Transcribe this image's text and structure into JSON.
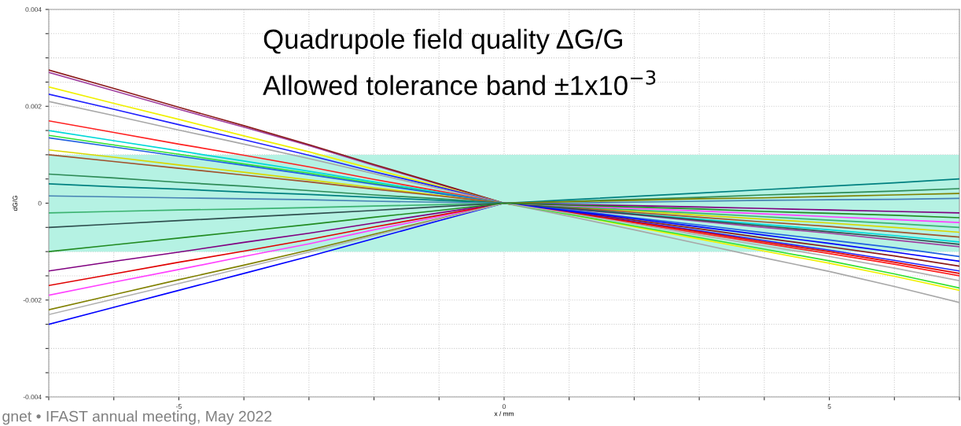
{
  "chart_data": {
    "type": "line",
    "title": "Quadrupole field quality ΔG/G",
    "subtitle": "Allowed tolerance band ±1x10$^{−3}$",
    "xlabel": "x / mm",
    "ylabel": "dG/G",
    "annotations": [
      "gnet • IFAST annual meeting, May 2022"
    ],
    "x": [
      -7,
      -6,
      -5,
      -4,
      -3,
      -2,
      -1,
      0,
      1,
      2,
      3,
      4,
      5,
      6,
      7
    ],
    "xlim": [
      -7,
      7
    ],
    "xticks": [
      {
        "value": -7,
        "label": null
      },
      {
        "value": -6,
        "label": null
      },
      -5,
      {
        "value": -4,
        "label": null
      },
      {
        "value": -3,
        "label": null
      },
      {
        "value": -2,
        "label": null
      },
      {
        "value": -1,
        "label": null
      },
      0,
      {
        "value": 1,
        "label": null
      },
      {
        "value": 2,
        "label": null
      },
      {
        "value": 3,
        "label": null
      },
      {
        "value": 4,
        "label": null
      },
      5,
      {
        "value": 6,
        "label": null
      },
      {
        "value": 7,
        "label": null
      }
    ],
    "ylim": [
      -0.004,
      0.004
    ],
    "yticks": [
      {
        "value": -0.004,
        "label": "-0.004"
      },
      {
        "value": -0.0035,
        "label": null
      },
      {
        "value": -0.003,
        "label": null
      },
      {
        "value": -0.0025,
        "label": null
      },
      {
        "value": -0.002,
        "label": "-0.002"
      },
      {
        "value": -0.0015,
        "label": null
      },
      {
        "value": -0.001,
        "label": null
      },
      {
        "value": -0.0005,
        "label": null
      },
      0,
      {
        "value": 0.0005,
        "label": null
      },
      {
        "value": 0.001,
        "label": null
      },
      {
        "value": 0.0015,
        "label": null
      },
      {
        "value": 0.002,
        "label": "0.002"
      },
      {
        "value": 0.0025,
        "label": null
      },
      {
        "value": 0.003,
        "label": null
      },
      {
        "value": 0.0035,
        "label": null
      },
      {
        "value": 0.004,
        "label": "0.004"
      }
    ],
    "grid": true,
    "marker": "none",
    "line_style": "solid",
    "bands": [
      {
        "axis": "y",
        "from": -0.001,
        "to": 0.001,
        "color": "#b5f2e3"
      }
    ],
    "series": [
      {
        "color": "#a040a0",
        "values": [
          0.0027,
          0.00232,
          0.00194,
          0.00157,
          0.00119,
          0.00078,
          0.00039,
          0,
          -0.00012,
          -0.00024,
          -0.00037,
          -0.0005,
          -0.00062,
          -0.00076,
          -0.0009
        ]
      },
      {
        "color": "#8b1a1a",
        "values": [
          0.00275,
          0.00237,
          0.00198,
          0.0016,
          0.00121,
          0.0008,
          0.0004,
          0,
          -0.00017,
          -0.00035,
          -0.00053,
          -0.00072,
          -0.0009,
          -0.00109,
          -0.0013
        ]
      },
      {
        "color": "#f0f000",
        "values": [
          0.0024,
          0.00206,
          0.00173,
          0.00139,
          0.00106,
          0.0007,
          0.00035,
          0,
          -0.00023,
          -0.00049,
          -0.00074,
          -0.00099,
          -0.00124,
          -0.00151,
          -0.0018
        ]
      },
      {
        "color": "#2020ff",
        "values": [
          0.00225,
          0.00194,
          0.00162,
          0.00131,
          0.00099,
          0.00065,
          0.00033,
          0,
          -0.00018,
          -0.00038,
          -0.00057,
          -0.00077,
          -0.00097,
          -0.00118,
          -0.0014
        ]
      },
      {
        "color": "#a8a8a8",
        "values": [
          0.0021,
          0.00181,
          0.00151,
          0.00122,
          0.00092,
          0.00061,
          0.0003,
          0,
          -0.00027,
          -0.00055,
          -0.00084,
          -0.00113,
          -0.00141,
          -0.00172,
          -0.00205
        ]
      },
      {
        "color": "#ff2020",
        "values": [
          0.0017,
          0.00146,
          0.00122,
          0.00099,
          0.00075,
          0.00049,
          0.00025,
          0,
          -0.0002,
          -0.00041,
          -0.00062,
          -0.00083,
          -0.00104,
          -0.00126,
          -0.0015
        ]
      },
      {
        "color": "#00d8d8",
        "values": [
          0.0015,
          0.00129,
          0.00108,
          0.00087,
          0.00066,
          0.00044,
          0.00022,
          0,
          -0.0001,
          -0.00022,
          -0.00033,
          -0.00044,
          -0.00055,
          -0.00067,
          -0.0008
        ]
      },
      {
        "color": "#30e030",
        "values": [
          0.0014,
          0.0012,
          0.00101,
          0.00081,
          0.00062,
          0.00041,
          0.0002,
          0,
          -0.00023,
          -0.00047,
          -0.00071,
          -0.00095,
          -0.00119,
          -0.00146,
          -0.00175
        ]
      },
      {
        "color": "#2060e0",
        "values": [
          0.00135,
          0.00116,
          0.00097,
          0.00078,
          0.00059,
          0.00039,
          0.0002,
          0,
          -0.00014,
          -0.0003,
          -0.00045,
          -0.00061,
          -0.00076,
          -0.00092,
          -0.0011
        ]
      },
      {
        "color": "#d8d800",
        "values": [
          0.0011,
          0.00095,
          0.00079,
          0.00064,
          0.00048,
          0.00032,
          0.00016,
          0,
          -8e-05,
          -0.00016,
          -0.00025,
          -0.00033,
          -0.00041,
          -0.0005,
          -0.0006
        ]
      },
      {
        "color": "#a0522d",
        "values": [
          0.001,
          0.00086,
          0.00072,
          0.00058,
          0.00044,
          0.00029,
          0.00015,
          0,
          -9e-05,
          -0.00019,
          -0.00029,
          -0.00039,
          -0.00048,
          -0.00059,
          -0.0007
        ]
      },
      {
        "color": "#2e8b57",
        "values": [
          0.0006,
          0.00052,
          0.00043,
          0.00035,
          0.00026,
          0.00017,
          9e-05,
          0,
          4e-05,
          8e-05,
          0.00012,
          0.00017,
          0.00021,
          0.00025,
          0.0003
        ]
      },
      {
        "color": "#008080",
        "values": [
          0.0004,
          0.00034,
          0.00029,
          0.00023,
          0.00018,
          0.00012,
          6e-05,
          0,
          7e-05,
          0.00014,
          0.00021,
          0.00028,
          0.00035,
          0.00042,
          0.0005
        ]
      },
      {
        "color": "#4682b4",
        "values": [
          0.00015,
          0.00013,
          0.00011,
          9e-05,
          7e-05,
          4e-05,
          2e-05,
          0,
          0,
          2e-05,
          4e-05,
          6e-05,
          7e-05,
          8e-05,
          0.0001
        ]
      },
      {
        "color": "#3cb371",
        "values": [
          -0.0002,
          -0.00017,
          -0.00014,
          -0.00012,
          -9e-05,
          -6e-05,
          -3e-05,
          0,
          -7e-05,
          -0.00014,
          -0.00021,
          -0.00028,
          -0.00035,
          -0.00042,
          -0.0005
        ]
      },
      {
        "color": "#2f4f4f",
        "values": [
          -0.0005,
          -0.00043,
          -0.00036,
          -0.00029,
          -0.00022,
          -0.00015,
          -7e-05,
          0,
          -0.00011,
          -0.00023,
          -0.00035,
          -0.00047,
          -0.00059,
          -0.00071,
          -0.00085
        ]
      },
      {
        "color": "#ff40ff",
        "values": [
          -0.0019,
          -0.00163,
          -0.00137,
          -0.0011,
          -0.00084,
          -0.00055,
          -0.00028,
          0,
          -5e-05,
          -0.00011,
          -0.00016,
          -0.00022,
          -0.00028,
          -0.00034,
          -0.0004
        ]
      },
      {
        "color": "#e00000",
        "values": [
          -0.0017,
          -0.00146,
          -0.00122,
          -0.00099,
          -0.00075,
          -0.00049,
          -0.00025,
          0,
          -0.00019,
          -0.00039,
          -0.00059,
          -0.0008,
          -0.001,
          -0.00122,
          -0.00145
        ]
      },
      {
        "color": "#800080",
        "values": [
          -0.0014,
          -0.0012,
          -0.00101,
          -0.00081,
          -0.00062,
          -0.00041,
          -0.0002,
          0,
          -3e-05,
          -5e-05,
          -8e-05,
          -0.00011,
          -0.00014,
          -0.00017,
          -0.0002
        ]
      },
      {
        "color": "#0000ff",
        "values": [
          -0.0025,
          -0.00215,
          -0.0018,
          -0.00145,
          -0.0011,
          -0.00073,
          -0.00036,
          0,
          -0.00016,
          -0.00032,
          -0.00049,
          -0.00066,
          -0.00083,
          -0.00101,
          -0.0012
        ]
      },
      {
        "color": "#808000",
        "values": [
          -0.0022,
          -0.00189,
          -0.00158,
          -0.00128,
          -0.00097,
          -0.00064,
          -0.00032,
          0,
          3e-05,
          6e-05,
          9e-05,
          0.00011,
          0.00014,
          0.00017,
          0.0002
        ]
      },
      {
        "color": "#b0b0b0",
        "values": [
          -0.0023,
          -0.00198,
          -0.00166,
          -0.00133,
          -0.00101,
          -0.00067,
          -0.00033,
          0,
          -0.00021,
          -0.00043,
          -0.00066,
          -0.00088,
          -0.0011,
          -0.00134,
          -0.0016
        ]
      },
      {
        "color": "#228b22",
        "values": [
          -0.001,
          -0.00086,
          -0.00072,
          -0.00058,
          -0.00044,
          -0.00029,
          -0.00015,
          0,
          -4e-05,
          -8e-05,
          -0.00012,
          -0.00017,
          -0.00021,
          -0.00025,
          -0.0003
        ]
      }
    ]
  }
}
